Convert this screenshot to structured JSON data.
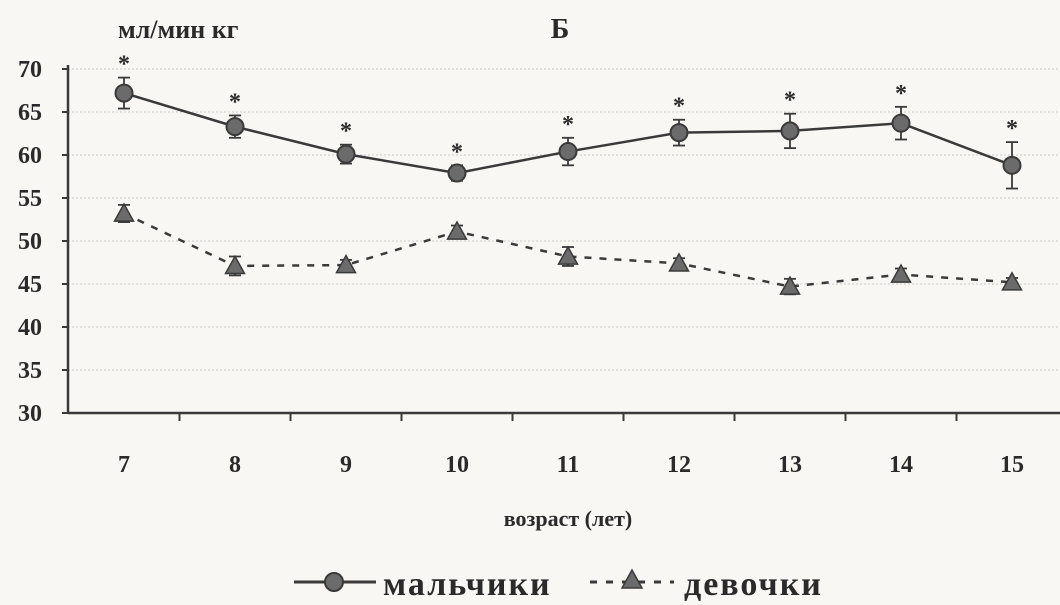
{
  "chart_data": {
    "type": "line",
    "title": "Б",
    "ylabel": "мл/мин кг",
    "xlabel": "возраст (лет)",
    "categories": [
      "7",
      "8",
      "9",
      "10",
      "11",
      "12",
      "13",
      "14",
      "15"
    ],
    "ylim": [
      30,
      70
    ],
    "yticks": [
      30,
      35,
      40,
      45,
      50,
      55,
      60,
      65,
      70
    ],
    "grid": true,
    "legend_position": "bottom",
    "series": [
      {
        "name": "мальчики",
        "marker": "circle",
        "line_style": "solid",
        "values": [
          67.2,
          63.3,
          60.1,
          57.9,
          60.4,
          62.6,
          62.8,
          63.7,
          58.8
        ],
        "error": [
          1.8,
          1.3,
          1.1,
          0.9,
          1.6,
          1.5,
          2.0,
          1.9,
          2.7
        ],
        "significance": [
          "*",
          "*",
          "*",
          "*",
          "*",
          "*",
          "*",
          "*",
          "*"
        ]
      },
      {
        "name": "девочки",
        "marker": "triangle",
        "line_style": "dashed",
        "values": [
          53.2,
          47.1,
          47.2,
          51.1,
          48.2,
          47.4,
          44.7,
          46.1,
          45.2
        ],
        "error": [
          1.0,
          1.1,
          0.6,
          0.7,
          1.1,
          0.6,
          0.9,
          0.7,
          0.5
        ]
      }
    ],
    "colors": {
      "line": "#3a3a3a",
      "marker": "#6b6b6b",
      "grid": "#c9c9c9"
    }
  }
}
